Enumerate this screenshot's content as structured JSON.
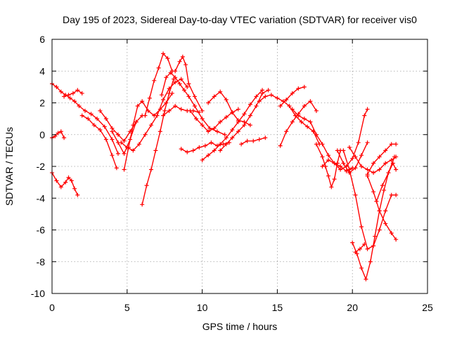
{
  "chart_data": {
    "type": "scatter",
    "title": "Day 195 of 2023, Sidereal Day-to-day VTEC variation (SDTVAR) for receiver vis0",
    "xlabel": "GPS time / hours",
    "ylabel": "SDTVAR / TECUs",
    "xlim": [
      0,
      25
    ],
    "ylim": [
      -10,
      6
    ],
    "xticks": [
      "0",
      "5",
      "10",
      "15",
      "20",
      "25"
    ],
    "yticks": [
      "-10",
      "-8",
      "-6",
      "-4",
      "-2",
      "0",
      "2",
      "4",
      "6"
    ],
    "grid": true,
    "marker": "plus",
    "color": "#ff0000",
    "series": [
      {
        "x": [
          0.0,
          0.3,
          0.6,
          0.9,
          1.2,
          1.5,
          1.8,
          2.2,
          2.6,
          3.0,
          3.5,
          4.0,
          4.4
        ],
        "y": [
          3.2,
          3.0,
          2.7,
          2.5,
          2.3,
          2.1,
          1.8,
          1.5,
          1.3,
          1.0,
          0.5,
          -0.3,
          -1.2
        ]
      },
      {
        "x": [
          0.8,
          1.1,
          1.4,
          1.7,
          2.0
        ],
        "y": [
          2.4,
          2.5,
          2.6,
          2.8,
          2.6
        ]
      },
      {
        "x": [
          0.0,
          0.2,
          0.4,
          0.6,
          0.8
        ],
        "y": [
          -0.2,
          -0.1,
          0.1,
          0.2,
          -0.2
        ]
      },
      {
        "x": [
          0.0,
          0.3,
          0.6,
          0.9,
          1.1,
          1.3,
          1.5,
          1.7
        ],
        "y": [
          -2.4,
          -2.9,
          -3.3,
          -3.0,
          -2.7,
          -2.9,
          -3.4,
          -3.8
        ]
      },
      {
        "x": [
          2.0,
          2.4,
          2.8,
          3.2,
          3.6,
          4.0,
          4.3
        ],
        "y": [
          1.2,
          1.0,
          0.6,
          0.3,
          -0.3,
          -1.3,
          -2.1
        ]
      },
      {
        "x": [
          3.2,
          3.6,
          4.0,
          4.4,
          4.8,
          5.2,
          5.6
        ],
        "y": [
          1.5,
          1.0,
          0.4,
          0.0,
          -0.4,
          0.2,
          0.8
        ]
      },
      {
        "x": [
          4.0,
          4.4,
          4.8,
          5.2,
          5.6,
          6.0
        ],
        "y": [
          0.2,
          -0.5,
          -1.2,
          -0.3,
          0.8,
          1.2
        ]
      },
      {
        "x": [
          4.8,
          5.1,
          5.4,
          5.7,
          6.0,
          6.4,
          6.8,
          7.2,
          7.6,
          8.0
        ],
        "y": [
          -2.2,
          -0.8,
          0.6,
          1.8,
          2.1,
          1.5,
          1.2,
          1.6,
          2.0,
          2.6
        ]
      },
      {
        "x": [
          4.6,
          5.0,
          5.4,
          5.8,
          6.2,
          6.6,
          7.0,
          7.4,
          7.8,
          8.2,
          8.6,
          9.0
        ],
        "y": [
          -0.5,
          -0.8,
          -1.0,
          -0.6,
          0.0,
          0.6,
          1.2,
          2.2,
          2.9,
          3.3,
          3.5,
          3.0
        ]
      },
      {
        "x": [
          6.0,
          6.3,
          6.6,
          6.9,
          7.2,
          7.5,
          7.8,
          8.1
        ],
        "y": [
          -4.4,
          -3.2,
          -2.2,
          -1.0,
          0.2,
          1.5,
          2.6,
          3.5
        ]
      },
      {
        "x": [
          6.2,
          6.5,
          6.8,
          7.1,
          7.4,
          7.7,
          8.0
        ],
        "y": [
          1.2,
          2.3,
          3.4,
          4.2,
          5.1,
          4.8,
          4.0
        ]
      },
      {
        "x": [
          7.3,
          7.6,
          7.9,
          8.2,
          8.5,
          8.8,
          9.1,
          9.5,
          10.0,
          10.5,
          11.0,
          11.5
        ],
        "y": [
          2.5,
          3.6,
          3.9,
          3.6,
          3.2,
          2.8,
          2.4,
          1.8,
          1.0,
          0.4,
          0.2,
          0.0
        ]
      },
      {
        "x": [
          8.2,
          8.5,
          8.7,
          8.9,
          9.1,
          9.5,
          10.0
        ],
        "y": [
          4.0,
          4.6,
          4.9,
          4.4,
          3.2,
          2.4,
          1.5
        ]
      },
      {
        "x": [
          7.4,
          7.8,
          8.2,
          8.6,
          9.0,
          9.4,
          9.8
        ],
        "y": [
          1.2,
          1.5,
          1.8,
          1.6,
          1.5,
          1.5,
          1.4
        ]
      },
      {
        "x": [
          8.6,
          9.0,
          9.4,
          9.8,
          10.2,
          10.6,
          11.0,
          11.4,
          11.8
        ],
        "y": [
          -0.9,
          -1.1,
          -1.0,
          -0.8,
          -0.7,
          -0.5,
          -0.7,
          -0.6,
          -0.5
        ]
      },
      {
        "x": [
          9.2,
          9.6,
          10.0,
          10.4,
          10.8,
          11.2,
          11.6,
          12.0,
          12.4
        ],
        "y": [
          1.5,
          1.0,
          0.6,
          0.2,
          0.4,
          0.8,
          1.1,
          1.4,
          1.6
        ]
      },
      {
        "x": [
          10.0,
          10.4,
          10.8,
          11.2,
          11.6,
          12.0,
          12.4,
          12.8,
          13.2,
          13.6,
          14.0
        ],
        "y": [
          -1.6,
          -1.3,
          -1.0,
          -0.6,
          -0.2,
          0.3,
          0.8,
          1.3,
          1.9,
          2.4,
          2.8
        ]
      },
      {
        "x": [
          10.4,
          10.8,
          11.2,
          11.6,
          12.0,
          12.4,
          12.8,
          13.2
        ],
        "y": [
          2.0,
          2.4,
          2.7,
          2.2,
          1.4,
          0.9,
          0.8,
          0.6
        ]
      },
      {
        "x": [
          11.2,
          11.6,
          12.0,
          12.4,
          12.8,
          13.2,
          13.6,
          14.0,
          14.4
        ],
        "y": [
          -1.0,
          -0.6,
          -0.2,
          0.2,
          0.6,
          1.2,
          1.8,
          2.6,
          2.8
        ]
      },
      {
        "x": [
          12.6,
          13.0,
          13.4,
          13.8,
          14.2
        ],
        "y": [
          -0.6,
          -0.4,
          -0.4,
          -0.3,
          -0.2
        ]
      },
      {
        "x": [
          13.8,
          14.2,
          14.6,
          15.0,
          15.4,
          15.8,
          16.2,
          16.6,
          17.0,
          17.4,
          17.8
        ],
        "y": [
          2.1,
          2.4,
          2.5,
          2.3,
          2.1,
          1.8,
          1.2,
          0.8,
          0.5,
          0.2,
          -0.6
        ]
      },
      {
        "x": [
          15.2,
          15.6,
          16.0,
          16.4,
          16.8
        ],
        "y": [
          1.8,
          2.2,
          2.6,
          2.9,
          3.0
        ]
      },
      {
        "x": [
          15.2,
          15.6,
          16.0,
          16.4,
          16.8,
          17.2,
          17.6
        ],
        "y": [
          -0.7,
          0.2,
          0.8,
          1.3,
          1.8,
          2.1,
          1.5
        ]
      },
      {
        "x": [
          16.0,
          16.4,
          16.8,
          17.2,
          17.6,
          18.0,
          18.4,
          18.8,
          19.2,
          19.6,
          20.0
        ],
        "y": [
          1.6,
          1.2,
          1.0,
          0.8,
          0.0,
          -0.6,
          -1.3,
          -1.8,
          -2.0,
          -2.3,
          -2.1
        ]
      },
      {
        "x": [
          17.6,
          18.0,
          18.2,
          18.4,
          18.6,
          18.8,
          19.0,
          19.2
        ],
        "y": [
          -0.6,
          -1.4,
          -2.0,
          -2.6,
          -3.3,
          -2.8,
          -1.8,
          -1.0
        ]
      },
      {
        "x": [
          18.0,
          18.4,
          18.8,
          19.2,
          19.6,
          20.0,
          20.4,
          20.8,
          21.0
        ],
        "y": [
          -2.0,
          -1.6,
          -1.8,
          -2.2,
          -2.0,
          -1.5,
          -0.5,
          1.2,
          1.6
        ]
      },
      {
        "x": [
          19.0,
          19.4,
          19.8,
          20.2,
          20.6,
          21.0
        ],
        "y": [
          -1.0,
          -1.8,
          -2.4,
          -2.1,
          -1.3,
          -0.5
        ]
      },
      {
        "x": [
          19.4,
          19.8,
          20.2,
          20.6,
          21.0,
          21.4,
          21.8,
          22.2,
          22.6,
          22.9
        ],
        "y": [
          -1.0,
          -2.2,
          -3.8,
          -5.8,
          -7.2,
          -7.0,
          -6.0,
          -4.8,
          -3.8,
          -3.8
        ]
      },
      {
        "x": [
          19.8,
          20.2,
          20.6,
          21.0,
          21.4,
          21.8,
          22.2,
          22.6,
          22.9
        ],
        "y": [
          -0.8,
          -1.4,
          -2.0,
          -2.2,
          -2.4,
          -2.2,
          -1.8,
          -1.6,
          -1.4
        ]
      },
      {
        "x": [
          20.0,
          20.3,
          20.6,
          20.9,
          21.2,
          21.5,
          21.8,
          22.1,
          22.4,
          22.7,
          22.9
        ],
        "y": [
          -6.8,
          -7.5,
          -8.4,
          -9.1,
          -8.0,
          -6.4,
          -4.8,
          -3.5,
          -2.4,
          -1.8,
          -2.2
        ]
      },
      {
        "x": [
          20.2,
          20.5,
          20.8
        ],
        "y": [
          -7.4,
          -7.2,
          -6.9
        ]
      },
      {
        "x": [
          21.0,
          21.4,
          21.8,
          22.2,
          22.6,
          22.9
        ],
        "y": [
          -2.6,
          -3.6,
          -4.8,
          -5.6,
          -6.2,
          -6.6
        ]
      },
      {
        "x": [
          21.0,
          21.4,
          21.8,
          22.2,
          22.6,
          22.9
        ],
        "y": [
          -2.5,
          -1.8,
          -1.4,
          -1.0,
          -0.6,
          -0.6
        ]
      },
      {
        "x": [
          21.6,
          22.0,
          22.4,
          22.8
        ],
        "y": [
          -4.2,
          -3.2,
          -2.4,
          -1.4
        ]
      }
    ]
  }
}
